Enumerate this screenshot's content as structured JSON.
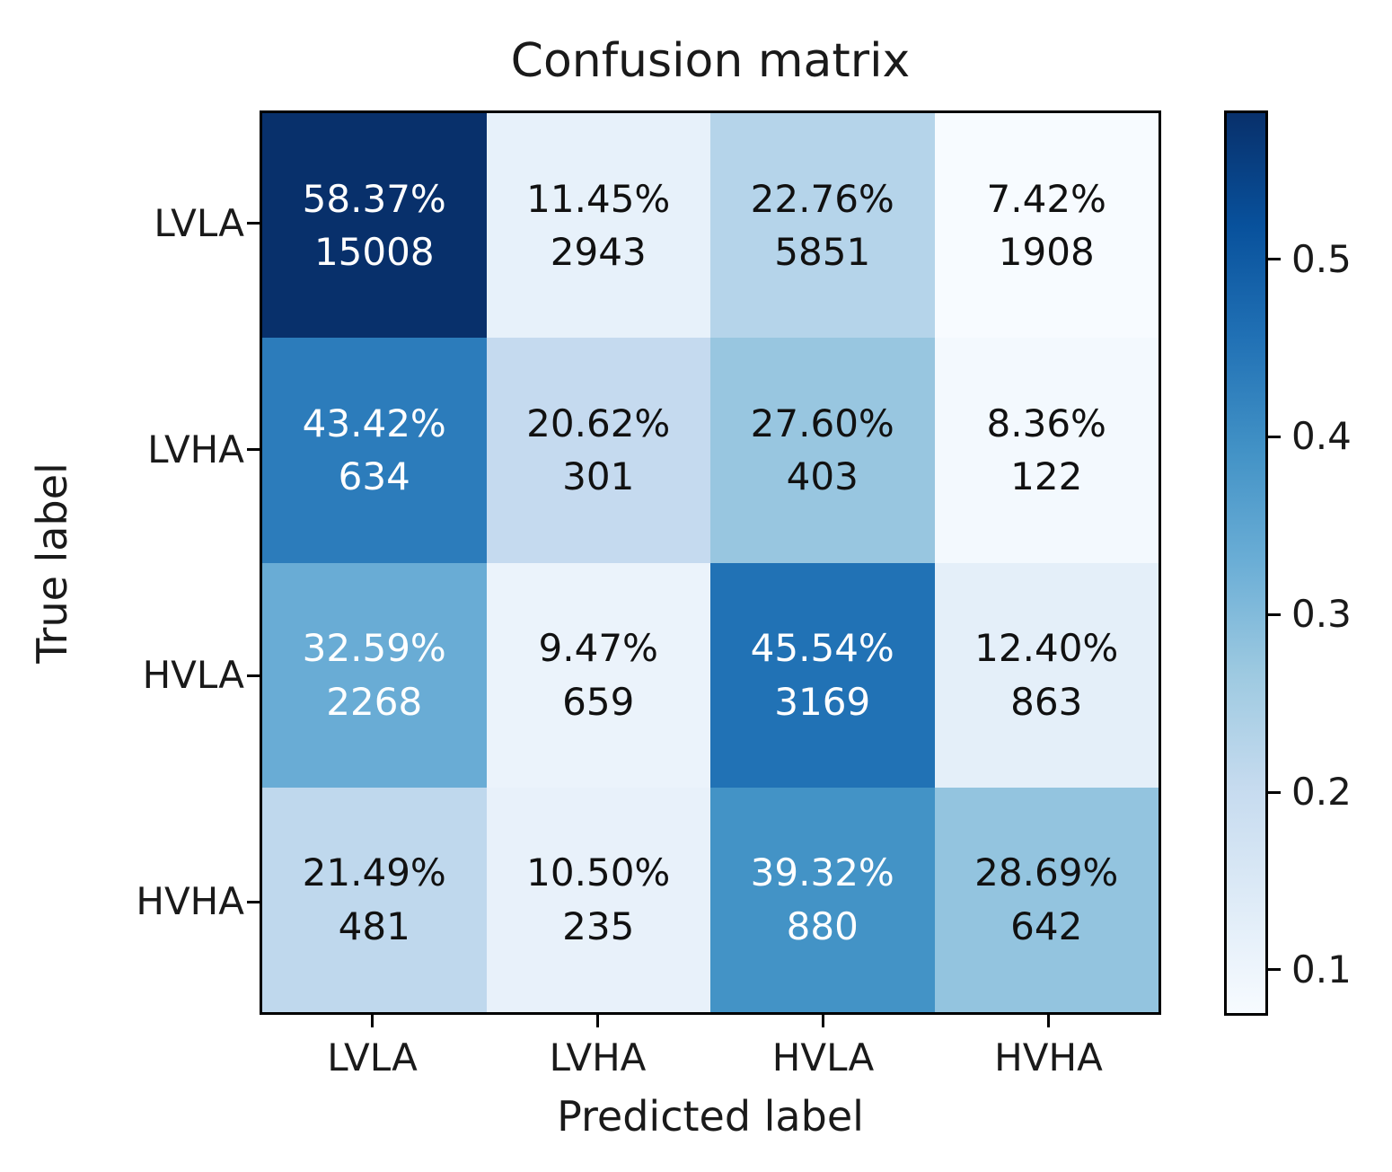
{
  "title": "Confusion matrix",
  "axes": {
    "xlabel": "Predicted label",
    "ylabel": "True label",
    "x_ticklabels": [
      "LVLA",
      "LVHA",
      "HVLA",
      "HVHA"
    ],
    "y_ticklabels": [
      "LVLA",
      "LVHA",
      "HVLA",
      "HVHA"
    ]
  },
  "colors": {
    "background": "#ffffff",
    "axis_border": "#000000",
    "text": "#1a1a1a",
    "cell_text_dark": "#111111",
    "cell_text_light": "#ffffff"
  },
  "chart_data": {
    "type": "heatmap",
    "title": "Confusion matrix",
    "xlabel": "Predicted label",
    "ylabel": "True label",
    "x_categories": [
      "LVLA",
      "LVHA",
      "HVLA",
      "HVHA"
    ],
    "y_categories": [
      "LVLA",
      "LVHA",
      "HVLA",
      "HVHA"
    ],
    "rows": [
      {
        "label": "LVLA",
        "cells": [
          {
            "percent": "58.37%",
            "count": "15008",
            "value": 0.5837,
            "bg": "#08306b",
            "fg": "#ffffff"
          },
          {
            "percent": "11.45%",
            "count": "2943",
            "value": 0.1145,
            "bg": "#e7f1fa",
            "fg": "#111111"
          },
          {
            "percent": "22.76%",
            "count": "5851",
            "value": 0.2276,
            "bg": "#b5d4ea",
            "fg": "#111111"
          },
          {
            "percent": "7.42%",
            "count": "1908",
            "value": 0.0742,
            "bg": "#f7fbff",
            "fg": "#111111"
          }
        ]
      },
      {
        "label": "LVHA",
        "cells": [
          {
            "percent": "43.42%",
            "count": "634",
            "value": 0.4342,
            "bg": "#2c7cbb",
            "fg": "#ffffff"
          },
          {
            "percent": "20.62%",
            "count": "301",
            "value": 0.2062,
            "bg": "#c5daef",
            "fg": "#111111"
          },
          {
            "percent": "27.60%",
            "count": "403",
            "value": 0.276,
            "bg": "#98c6e0",
            "fg": "#111111"
          },
          {
            "percent": "8.36%",
            "count": "122",
            "value": 0.0836,
            "bg": "#f3f9fe",
            "fg": "#111111"
          }
        ]
      },
      {
        "label": "HVLA",
        "cells": [
          {
            "percent": "32.59%",
            "count": "2268",
            "value": 0.3259,
            "bg": "#69acd5",
            "fg": "#ffffff"
          },
          {
            "percent": "9.47%",
            "count": "659",
            "value": 0.0947,
            "bg": "#ebf3fb",
            "fg": "#111111"
          },
          {
            "percent": "45.54%",
            "count": "3169",
            "value": 0.4554,
            "bg": "#2172b5",
            "fg": "#ffffff"
          },
          {
            "percent": "12.40%",
            "count": "863",
            "value": 0.124,
            "bg": "#e4eff9",
            "fg": "#111111"
          }
        ]
      },
      {
        "label": "HVHA",
        "cells": [
          {
            "percent": "21.49%",
            "count": "481",
            "value": 0.2149,
            "bg": "#bfd8ed",
            "fg": "#111111"
          },
          {
            "percent": "10.50%",
            "count": "235",
            "value": 0.105,
            "bg": "#e8f1fa",
            "fg": "#111111"
          },
          {
            "percent": "39.32%",
            "count": "880",
            "value": 0.3932,
            "bg": "#4393c6",
            "fg": "#ffffff"
          },
          {
            "percent": "28.69%",
            "count": "642",
            "value": 0.2869,
            "bg": "#93c4df",
            "fg": "#111111"
          }
        ]
      }
    ],
    "colorbar": {
      "vmin": 0.0742,
      "vmax": 0.5837,
      "tick_labels": [
        "0.5",
        "0.4",
        "0.3",
        "0.2",
        "0.1"
      ],
      "tick_values": [
        0.5,
        0.4,
        0.3,
        0.2,
        0.1
      ],
      "gradient_top_to_bottom": [
        "#08306b",
        "#08519c",
        "#2171b5",
        "#4292c6",
        "#6baed6",
        "#9ecae1",
        "#c6dbef",
        "#deebf7",
        "#f7fbff"
      ]
    }
  }
}
